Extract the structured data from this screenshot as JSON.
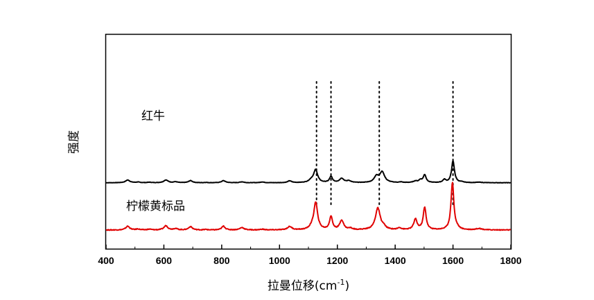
{
  "chart_data": {
    "type": "line",
    "xlabel": "拉曼位移(cm",
    "xlabel_sup": "-1",
    "xlabel_close": ")",
    "ylabel": "强度",
    "xlim": [
      400,
      1800
    ],
    "x_ticks": [
      400,
      600,
      800,
      1000,
      1200,
      1400,
      1600,
      1800
    ],
    "y_ticks_shown": false,
    "grid": false,
    "legend": "none",
    "reference_lines_x": [
      1128,
      1178,
      1345,
      1600
    ],
    "series": [
      {
        "name": "红牛",
        "color": "#000000",
        "offset": 0.55,
        "scale": 0.35,
        "baseline_noise": 0.006,
        "peaks": [
          [
            475,
            0.09,
            9
          ],
          [
            510,
            0.02,
            8
          ],
          [
            550,
            0.015,
            8
          ],
          [
            607,
            0.09,
            9
          ],
          [
            640,
            0.03,
            8
          ],
          [
            692,
            0.07,
            8
          ],
          [
            745,
            0.01,
            6
          ],
          [
            806,
            0.07,
            8
          ],
          [
            870,
            0.03,
            8
          ],
          [
            940,
            0.025,
            8
          ],
          [
            1035,
            0.06,
            8
          ],
          [
            1110,
            0.08,
            10
          ],
          [
            1125,
            0.42,
            8
          ],
          [
            1178,
            0.2,
            6
          ],
          [
            1215,
            0.14,
            9
          ],
          [
            1240,
            0.06,
            8
          ],
          [
            1335,
            0.2,
            9
          ],
          [
            1355,
            0.35,
            10
          ],
          [
            1420,
            0.02,
            6
          ],
          [
            1470,
            0.05,
            8
          ],
          [
            1487,
            0.08,
            6
          ],
          [
            1502,
            0.26,
            6
          ],
          [
            1570,
            0.1,
            6
          ],
          [
            1600,
            0.72,
            6
          ],
          [
            1630,
            0.02,
            8
          ],
          [
            1690,
            0.015,
            12
          ]
        ]
      },
      {
        "name": "柠檬黄标品",
        "color": "#e00000",
        "offset": 0.0,
        "scale": 0.55,
        "baseline_noise": 0.008,
        "peaks": [
          [
            475,
            0.08,
            8
          ],
          [
            510,
            0.02,
            7
          ],
          [
            550,
            0.015,
            8
          ],
          [
            607,
            0.09,
            8
          ],
          [
            640,
            0.03,
            8
          ],
          [
            692,
            0.07,
            8
          ],
          [
            745,
            0.01,
            6
          ],
          [
            806,
            0.08,
            7
          ],
          [
            870,
            0.05,
            9
          ],
          [
            940,
            0.015,
            8
          ],
          [
            1035,
            0.07,
            9
          ],
          [
            1125,
            0.58,
            8
          ],
          [
            1110,
            0.04,
            8
          ],
          [
            1178,
            0.28,
            6
          ],
          [
            1215,
            0.2,
            8
          ],
          [
            1245,
            0.03,
            8
          ],
          [
            1340,
            0.46,
            10
          ],
          [
            1360,
            0.05,
            8
          ],
          [
            1415,
            0.04,
            7
          ],
          [
            1470,
            0.22,
            7
          ],
          [
            1502,
            0.47,
            6
          ],
          [
            1598,
            1.0,
            6
          ],
          [
            1615,
            0.03,
            6
          ],
          [
            1690,
            0.03,
            12
          ]
        ]
      }
    ],
    "annotations": [
      {
        "text": "红牛",
        "series": 0
      },
      {
        "text": "柠檬黄标品",
        "series": 1
      }
    ]
  }
}
